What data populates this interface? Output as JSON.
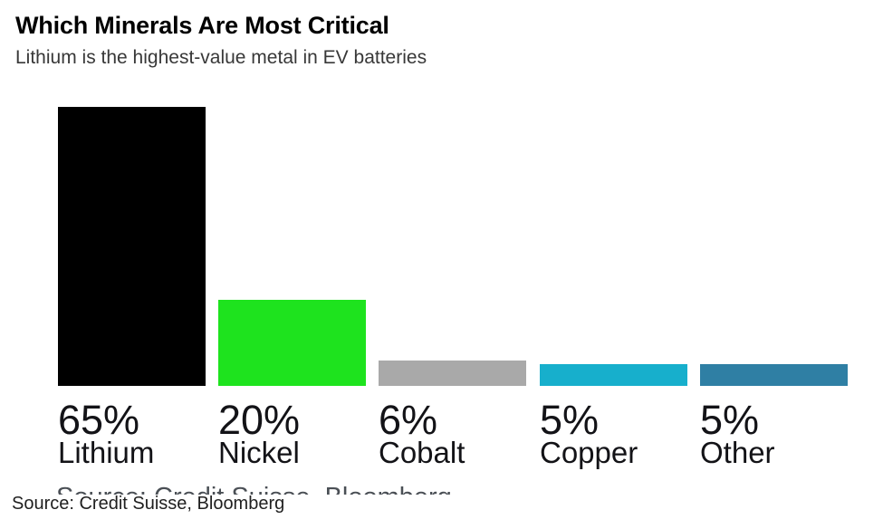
{
  "header": {
    "title": "Which Minerals Are Most Critical",
    "subtitle": "Lithium is the highest-value metal in EV batteries"
  },
  "chart_data": {
    "type": "bar",
    "title": "Which Minerals Are Most Critical",
    "subtitle": "Lithium is the highest-value metal in EV batteries",
    "categories": [
      "Lithium",
      "Nickel",
      "Cobalt",
      "Copper",
      "Other"
    ],
    "values": [
      65,
      20,
      6,
      5,
      5
    ],
    "value_labels": [
      "65%",
      "20%",
      "6%",
      "5%",
      "5%"
    ],
    "bar_colors": [
      "#000000",
      "#1ee31e",
      "#a9a9a9",
      "#17afcc",
      "#2f7fa4"
    ],
    "xlabel": "",
    "ylabel": "",
    "ylim": [
      0,
      65
    ],
    "grid": false,
    "legend": false,
    "axis_lines": false,
    "source": "Source: Credit Suisse, Bloomberg"
  },
  "footer": {
    "cutoff_source_text": "Source: Credit Suisse, Bloomberg",
    "caption": "Source: Credit Suisse, Bloomberg"
  }
}
